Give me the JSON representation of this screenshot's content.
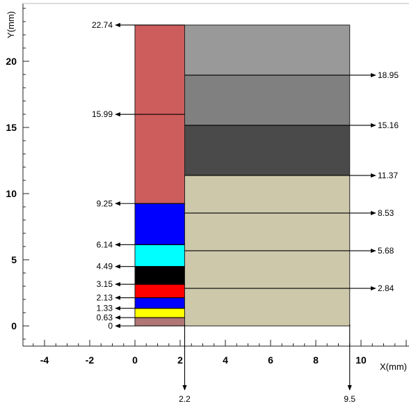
{
  "axes": {
    "x_label": "X(mm)",
    "y_label": "Y(mm)",
    "x_ticks": [
      "-4",
      "-2",
      "0",
      "2",
      "4",
      "6",
      "8",
      "10"
    ],
    "y_ticks": [
      "0",
      "5",
      "10",
      "15",
      "20"
    ],
    "x_range": [
      -5,
      12
    ],
    "y_range": [
      -1.5,
      24
    ]
  },
  "left_column": {
    "x_range": [
      0,
      2.2
    ],
    "layers": [
      {
        "y0": 0,
        "y1": 0.63,
        "color": "#b07575"
      },
      {
        "y0": 0.63,
        "y1": 1.33,
        "color": "#ffff00"
      },
      {
        "y0": 1.33,
        "y1": 2.13,
        "color": "#0000ff"
      },
      {
        "y0": 2.13,
        "y1": 3.15,
        "color": "#ff0000"
      },
      {
        "y0": 3.15,
        "y1": 4.49,
        "color": "#000000"
      },
      {
        "y0": 4.49,
        "y1": 6.14,
        "color": "#00ffff"
      },
      {
        "y0": 6.14,
        "y1": 9.25,
        "color": "#0000ff"
      },
      {
        "y0": 9.25,
        "y1": 22.74,
        "color": "#cd5c5c"
      }
    ],
    "marks": [
      {
        "value": 0,
        "label": "0"
      },
      {
        "value": 0.63,
        "label": "0.63"
      },
      {
        "value": 1.33,
        "label": "1.33"
      },
      {
        "value": 2.13,
        "label": "2.13"
      },
      {
        "value": 3.15,
        "label": "3.15"
      },
      {
        "value": 4.49,
        "label": "4.49"
      },
      {
        "value": 6.14,
        "label": "6.14"
      },
      {
        "value": 9.25,
        "label": "9.25"
      },
      {
        "value": 15.99,
        "label": "15.99"
      },
      {
        "value": 22.74,
        "label": "22.74"
      }
    ]
  },
  "right_column": {
    "x_range": [
      2.2,
      9.5
    ],
    "layers": [
      {
        "y0": 0,
        "y1": 11.37,
        "color": "#cdc8aa"
      },
      {
        "y0": 11.37,
        "y1": 15.16,
        "color": "#4a4a4a"
      },
      {
        "y0": 15.16,
        "y1": 18.95,
        "color": "#808080"
      },
      {
        "y0": 18.95,
        "y1": 22.74,
        "color": "#999999"
      }
    ],
    "marks": [
      {
        "value": 2.84,
        "label": "2.84"
      },
      {
        "value": 5.68,
        "label": "5.68"
      },
      {
        "value": 8.53,
        "label": "8.53"
      },
      {
        "value": 11.37,
        "label": "11.37"
      },
      {
        "value": 15.16,
        "label": "15.16"
      },
      {
        "value": 18.95,
        "label": "18.95"
      }
    ]
  },
  "bottom_marks": [
    {
      "value": 2.2,
      "label": "2.2"
    },
    {
      "value": 9.5,
      "label": "9.5"
    }
  ]
}
